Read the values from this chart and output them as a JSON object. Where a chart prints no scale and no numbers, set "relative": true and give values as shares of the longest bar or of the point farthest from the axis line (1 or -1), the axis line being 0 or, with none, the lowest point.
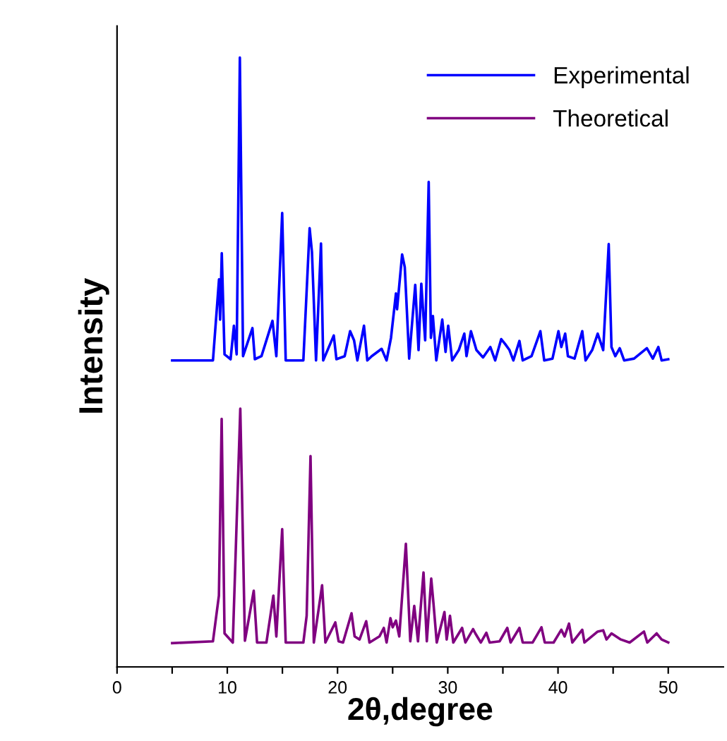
{
  "chart_data": {
    "type": "line",
    "relative": true,
    "xlabel": "2θ,degree",
    "ylabel": "Intensity",
    "xlim": [
      0,
      55
    ],
    "xticks": [
      0,
      {
        "value": 5,
        "label": null
      },
      10,
      {
        "value": 15,
        "label": null
      },
      20,
      {
        "value": 25,
        "label": null
      },
      30,
      {
        "value": 35,
        "label": null
      },
      40,
      {
        "value": 45,
        "label": null
      },
      50
    ],
    "legend": "top right",
    "grid": false,
    "marker": "none",
    "line_style": "solid",
    "series": [
      {
        "name": "Experimental",
        "color": "#0000ff",
        "x": [
          5.0,
          8.7,
          9.25,
          9.35,
          9.5,
          9.75,
          10.3,
          10.6,
          10.85,
          11.14,
          11.43,
          12.28,
          12.5,
          13.1,
          14.1,
          14.45,
          14.98,
          15.3,
          16.9,
          17.47,
          17.68,
          18.05,
          18.5,
          18.7,
          19.66,
          19.9,
          20.65,
          21.14,
          21.5,
          21.8,
          22.4,
          22.7,
          23.1,
          24.0,
          24.45,
          24.85,
          25.3,
          25.4,
          25.86,
          26.1,
          26.5,
          27.05,
          27.35,
          27.6,
          27.8,
          27.95,
          28.27,
          28.47,
          28.65,
          28.96,
          29.5,
          29.8,
          30.04,
          30.4,
          31.0,
          31.5,
          31.7,
          32.1,
          32.6,
          33.2,
          33.86,
          34.3,
          34.85,
          35.2,
          35.6,
          35.95,
          36.5,
          36.8,
          37.6,
          38.4,
          38.75,
          39.5,
          40.04,
          40.3,
          40.65,
          40.9,
          41.5,
          42.2,
          42.5,
          43.1,
          43.6,
          44.1,
          44.6,
          44.85,
          45.2,
          45.6,
          46.0,
          46.9,
          48.06,
          48.6,
          49.1,
          49.4,
          50.0
        ],
        "values": [
          0.503,
          0.503,
          0.636,
          0.57,
          0.679,
          0.513,
          0.505,
          0.56,
          0.513,
          1.0,
          0.51,
          0.556,
          0.505,
          0.51,
          0.568,
          0.51,
          0.745,
          0.503,
          0.503,
          0.72,
          0.681,
          0.503,
          0.695,
          0.503,
          0.544,
          0.505,
          0.51,
          0.551,
          0.536,
          0.503,
          0.56,
          0.503,
          0.51,
          0.522,
          0.503,
          0.54,
          0.613,
          0.587,
          0.677,
          0.656,
          0.506,
          0.627,
          0.52,
          0.629,
          0.574,
          0.536,
          0.796,
          0.54,
          0.576,
          0.503,
          0.57,
          0.517,
          0.56,
          0.503,
          0.52,
          0.547,
          0.51,
          0.551,
          0.52,
          0.508,
          0.525,
          0.503,
          0.538,
          0.53,
          0.52,
          0.503,
          0.535,
          0.503,
          0.51,
          0.551,
          0.503,
          0.506,
          0.551,
          0.525,
          0.547,
          0.51,
          0.506,
          0.551,
          0.503,
          0.52,
          0.547,
          0.52,
          0.694,
          0.525,
          0.51,
          0.523,
          0.503,
          0.506,
          0.523,
          0.506,
          0.525,
          0.503,
          0.505
        ]
      },
      {
        "name": "Theoretical",
        "color": "#800080",
        "x": [
          5.0,
          8.7,
          9.24,
          9.49,
          9.75,
          10.5,
          11.18,
          11.6,
          12.4,
          12.7,
          13.55,
          14.18,
          14.45,
          14.98,
          15.3,
          16.9,
          17.2,
          17.55,
          17.85,
          18.6,
          18.9,
          19.8,
          20.1,
          20.5,
          21.27,
          21.55,
          22.0,
          22.6,
          22.9,
          23.8,
          24.2,
          24.45,
          24.8,
          25.0,
          25.3,
          25.6,
          26.2,
          26.6,
          26.96,
          27.3,
          27.8,
          28.1,
          28.5,
          28.7,
          29.0,
          29.7,
          29.9,
          30.2,
          30.5,
          31.3,
          31.6,
          32.3,
          32.5,
          33.0,
          33.5,
          33.8,
          34.7,
          35.4,
          35.7,
          36.5,
          36.8,
          37.7,
          38.5,
          38.8,
          39.6,
          40.3,
          40.6,
          41.0,
          41.3,
          42.2,
          42.4,
          43.6,
          44.1,
          44.4,
          44.85,
          45.7,
          46.5,
          47.8,
          48.1,
          48.95,
          49.4,
          50.0
        ],
        "values": [
          0.039,
          0.042,
          0.117,
          0.407,
          0.055,
          0.04,
          0.424,
          0.043,
          0.125,
          0.04,
          0.04,
          0.117,
          0.05,
          0.226,
          0.04,
          0.04,
          0.084,
          0.346,
          0.04,
          0.134,
          0.04,
          0.073,
          0.042,
          0.04,
          0.088,
          0.05,
          0.045,
          0.075,
          0.04,
          0.05,
          0.064,
          0.04,
          0.08,
          0.065,
          0.076,
          0.05,
          0.202,
          0.042,
          0.1,
          0.042,
          0.155,
          0.042,
          0.145,
          0.105,
          0.04,
          0.09,
          0.045,
          0.084,
          0.04,
          0.064,
          0.04,
          0.062,
          0.055,
          0.04,
          0.056,
          0.04,
          0.042,
          0.064,
          0.04,
          0.064,
          0.04,
          0.04,
          0.065,
          0.04,
          0.04,
          0.061,
          0.05,
          0.071,
          0.04,
          0.061,
          0.04,
          0.058,
          0.06,
          0.045,
          0.055,
          0.045,
          0.04,
          0.058,
          0.04,
          0.055,
          0.045,
          0.04
        ]
      }
    ]
  }
}
